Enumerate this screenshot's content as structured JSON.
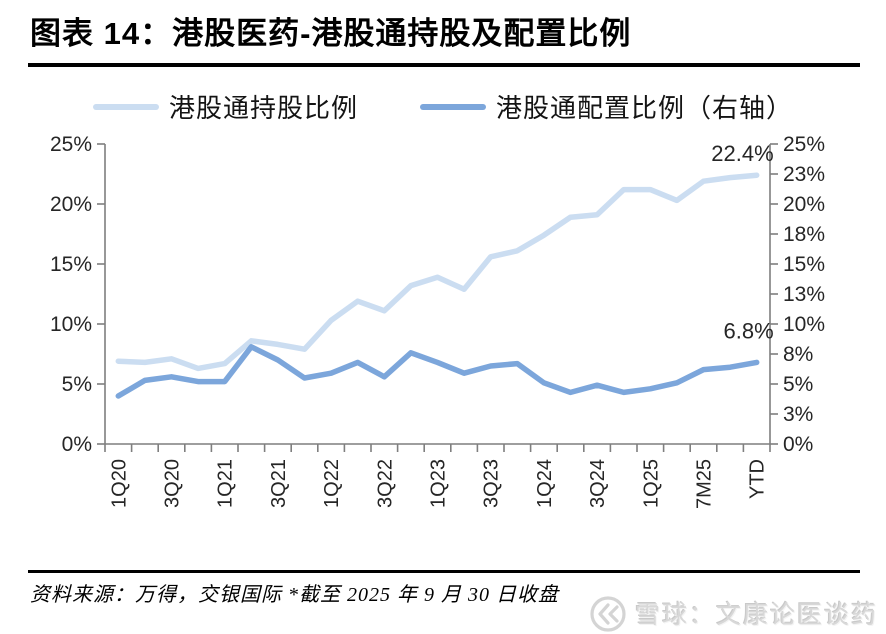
{
  "header": {
    "title": "图表 14：港股医药-港股通持股及配置比例"
  },
  "legend": [
    {
      "label": "港股通持股比例",
      "color": "#CBDDF1"
    },
    {
      "label": "港股通配置比例（右轴）",
      "color": "#7CA6DB"
    }
  ],
  "chart_data": {
    "type": "line",
    "title": "港股医药-港股通持股及配置比例",
    "x_labels": [
      "1Q20",
      "3Q20",
      "1Q21",
      "3Q21",
      "1Q22",
      "3Q22",
      "1Q23",
      "3Q23",
      "1Q24",
      "3Q24",
      "1Q25",
      "7M25",
      "YTD"
    ],
    "x_label_every_n_points": 2,
    "series": [
      {
        "name": "港股通持股比例",
        "axis": "left",
        "color": "#CBDDF1",
        "values": [
          6.9,
          6.8,
          7.1,
          6.3,
          6.7,
          8.6,
          8.3,
          7.9,
          10.3,
          11.9,
          11.1,
          13.2,
          13.9,
          12.9,
          15.6,
          16.1,
          17.4,
          18.9,
          19.1,
          21.2,
          21.2,
          20.3,
          21.9,
          22.2,
          22.4
        ]
      },
      {
        "name": "港股通配置比例（右轴）",
        "axis": "right",
        "color": "#7CA6DB",
        "values": [
          4.0,
          5.3,
          5.6,
          5.2,
          5.2,
          8.1,
          7.0,
          5.5,
          5.9,
          6.8,
          5.6,
          7.6,
          6.8,
          5.9,
          6.5,
          6.7,
          5.1,
          4.3,
          4.9,
          4.3,
          4.6,
          5.1,
          6.2,
          6.4,
          6.8
        ]
      }
    ],
    "left_axis": {
      "min": 0,
      "max": 25,
      "ticks": [
        "0%",
        "5%",
        "10%",
        "15%",
        "20%",
        "25%"
      ]
    },
    "right_axis": {
      "min": 0,
      "max": 25,
      "ticks": [
        "0%",
        "3%",
        "5%",
        "8%",
        "10%",
        "13%",
        "15%",
        "18%",
        "20%",
        "23%",
        "25%"
      ]
    },
    "annotations": [
      {
        "text": "22.4%",
        "series_index": 0
      },
      {
        "text": "6.8%",
        "series_index": 1
      }
    ],
    "grid": false,
    "legend_position": "top",
    "axis_color": "#7f7f7f",
    "label_color": "#262626"
  },
  "footer": {
    "source_note": "资料来源：万得，交银国际  *截至 2025 年 9 月 30 日收盘"
  },
  "watermark": {
    "logo": "snowball-logo-icon",
    "text": "雪球：文康论医谈药"
  }
}
